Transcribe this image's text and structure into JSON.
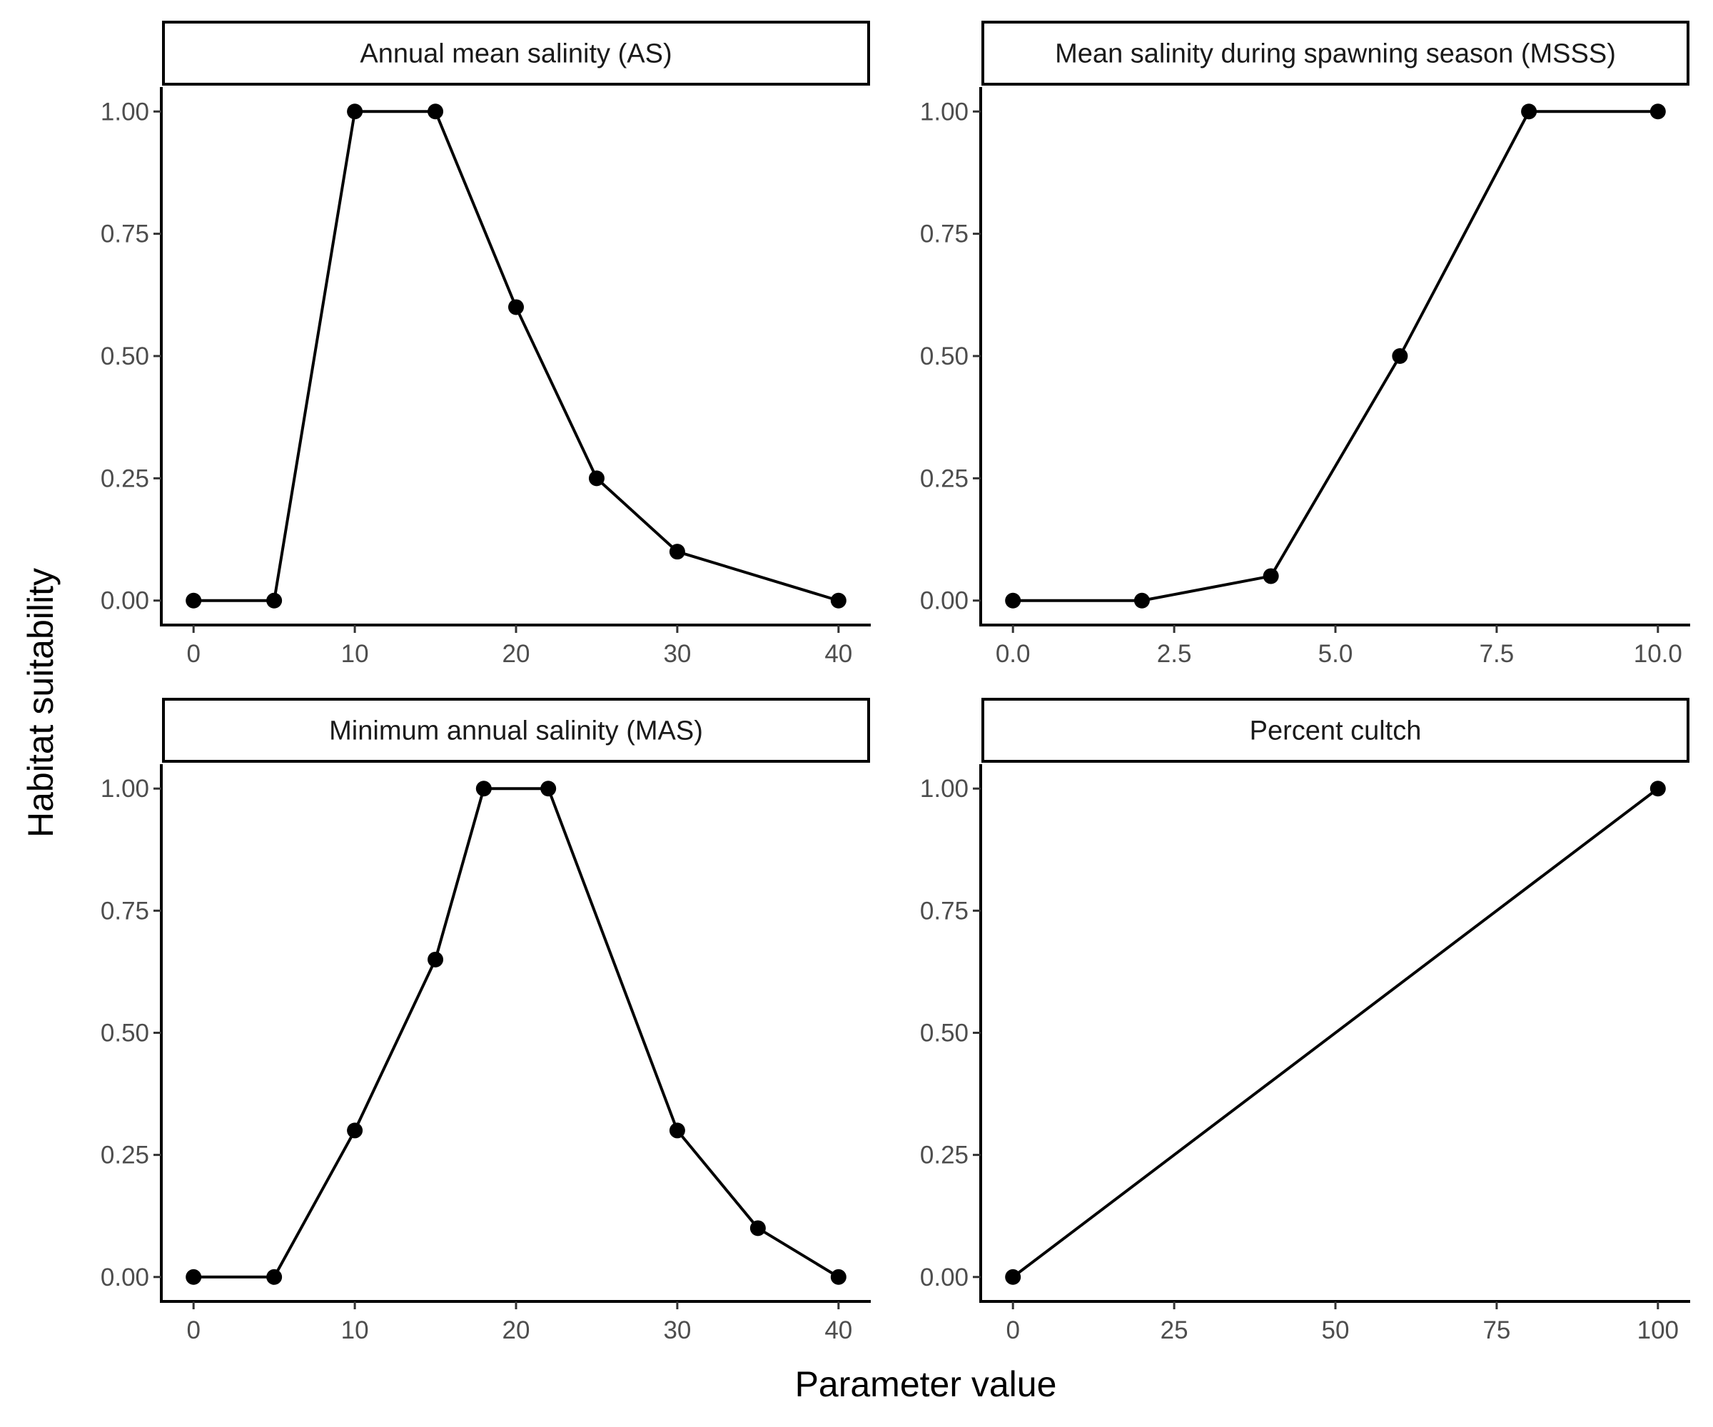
{
  "chart_data": [
    {
      "type": "line",
      "title": "Annual mean salinity (AS)",
      "x": [
        0,
        5,
        10,
        15,
        20,
        25,
        30,
        40
      ],
      "y": [
        0,
        0,
        1,
        1,
        0.6,
        0.25,
        0.1,
        0
      ],
      "xticks": [
        0,
        10,
        20,
        30,
        40
      ],
      "xtick_labels": [
        "0",
        "10",
        "20",
        "30",
        "40"
      ],
      "xlim": [
        -2,
        42
      ]
    },
    {
      "type": "line",
      "title": "Mean salinity during spawning season (MSSS)",
      "x": [
        0,
        2,
        4,
        6,
        8,
        10
      ],
      "y": [
        0,
        0,
        0.05,
        0.5,
        1,
        1
      ],
      "xticks": [
        0,
        2.5,
        5,
        7.5,
        10
      ],
      "xtick_labels": [
        "0.0",
        "2.5",
        "5.0",
        "7.5",
        "10.0"
      ],
      "xlim": [
        -0.5,
        10.5
      ]
    },
    {
      "type": "line",
      "title": "Minimum annual salinity (MAS)",
      "x": [
        0,
        5,
        10,
        15,
        18,
        22,
        30,
        35,
        40
      ],
      "y": [
        0,
        0,
        0.3,
        0.65,
        1,
        1,
        0.3,
        0.1,
        0
      ],
      "xticks": [
        0,
        10,
        20,
        30,
        40
      ],
      "xtick_labels": [
        "0",
        "10",
        "20",
        "30",
        "40"
      ],
      "xlim": [
        -2,
        42
      ]
    },
    {
      "type": "line",
      "title": "Percent cultch",
      "x": [
        0,
        100
      ],
      "y": [
        0,
        1
      ],
      "xticks": [
        0,
        25,
        50,
        75,
        100
      ],
      "xtick_labels": [
        "0",
        "25",
        "50",
        "75",
        "100"
      ],
      "xlim": [
        -5,
        105
      ]
    }
  ],
  "shared": {
    "xlabel": "Parameter value",
    "ylabel": "Habitat suitability",
    "yticks": [
      0,
      0.25,
      0.5,
      0.75,
      1
    ],
    "ytick_labels": [
      "0.00",
      "0.25",
      "0.50",
      "0.75",
      "1.00"
    ],
    "ylim": [
      -0.05,
      1.05
    ],
    "line_color": "#000000",
    "grid": false
  }
}
